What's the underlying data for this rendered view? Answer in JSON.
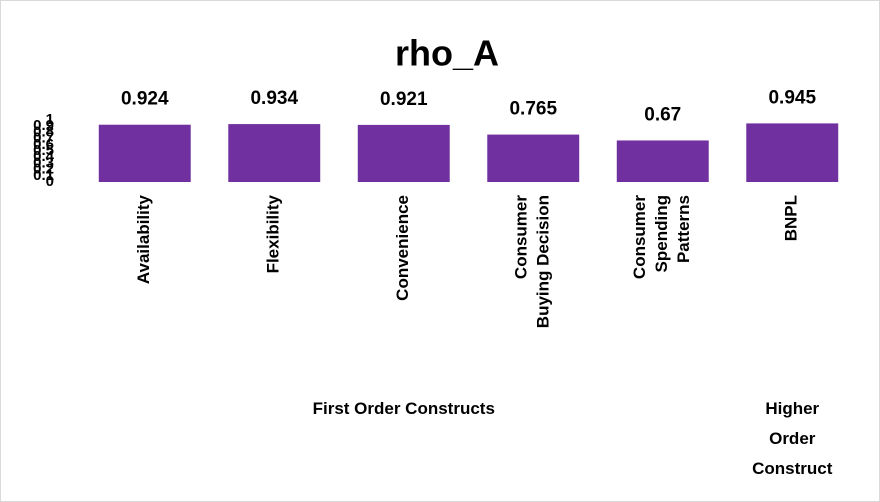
{
  "chart_data": {
    "type": "bar",
    "title": "rho_A",
    "categories": [
      "Availability",
      "Flexibility",
      "Convenience",
      "Consumer\nBuying Decision",
      "Consumer\nSpending\nPatterns",
      "BNPL"
    ],
    "values": [
      0.924,
      0.934,
      0.921,
      0.765,
      0.67,
      0.945
    ],
    "color": "#7030a0",
    "ylim": [
      0,
      1
    ],
    "yticks": [
      0,
      0.1,
      0.2,
      0.3,
      0.4,
      0.5,
      0.6,
      0.7,
      0.8,
      0.9,
      1
    ],
    "grid": false,
    "group_labels": [
      "First Order Constructs",
      "Higher\nOrder\nConstruct"
    ]
  }
}
